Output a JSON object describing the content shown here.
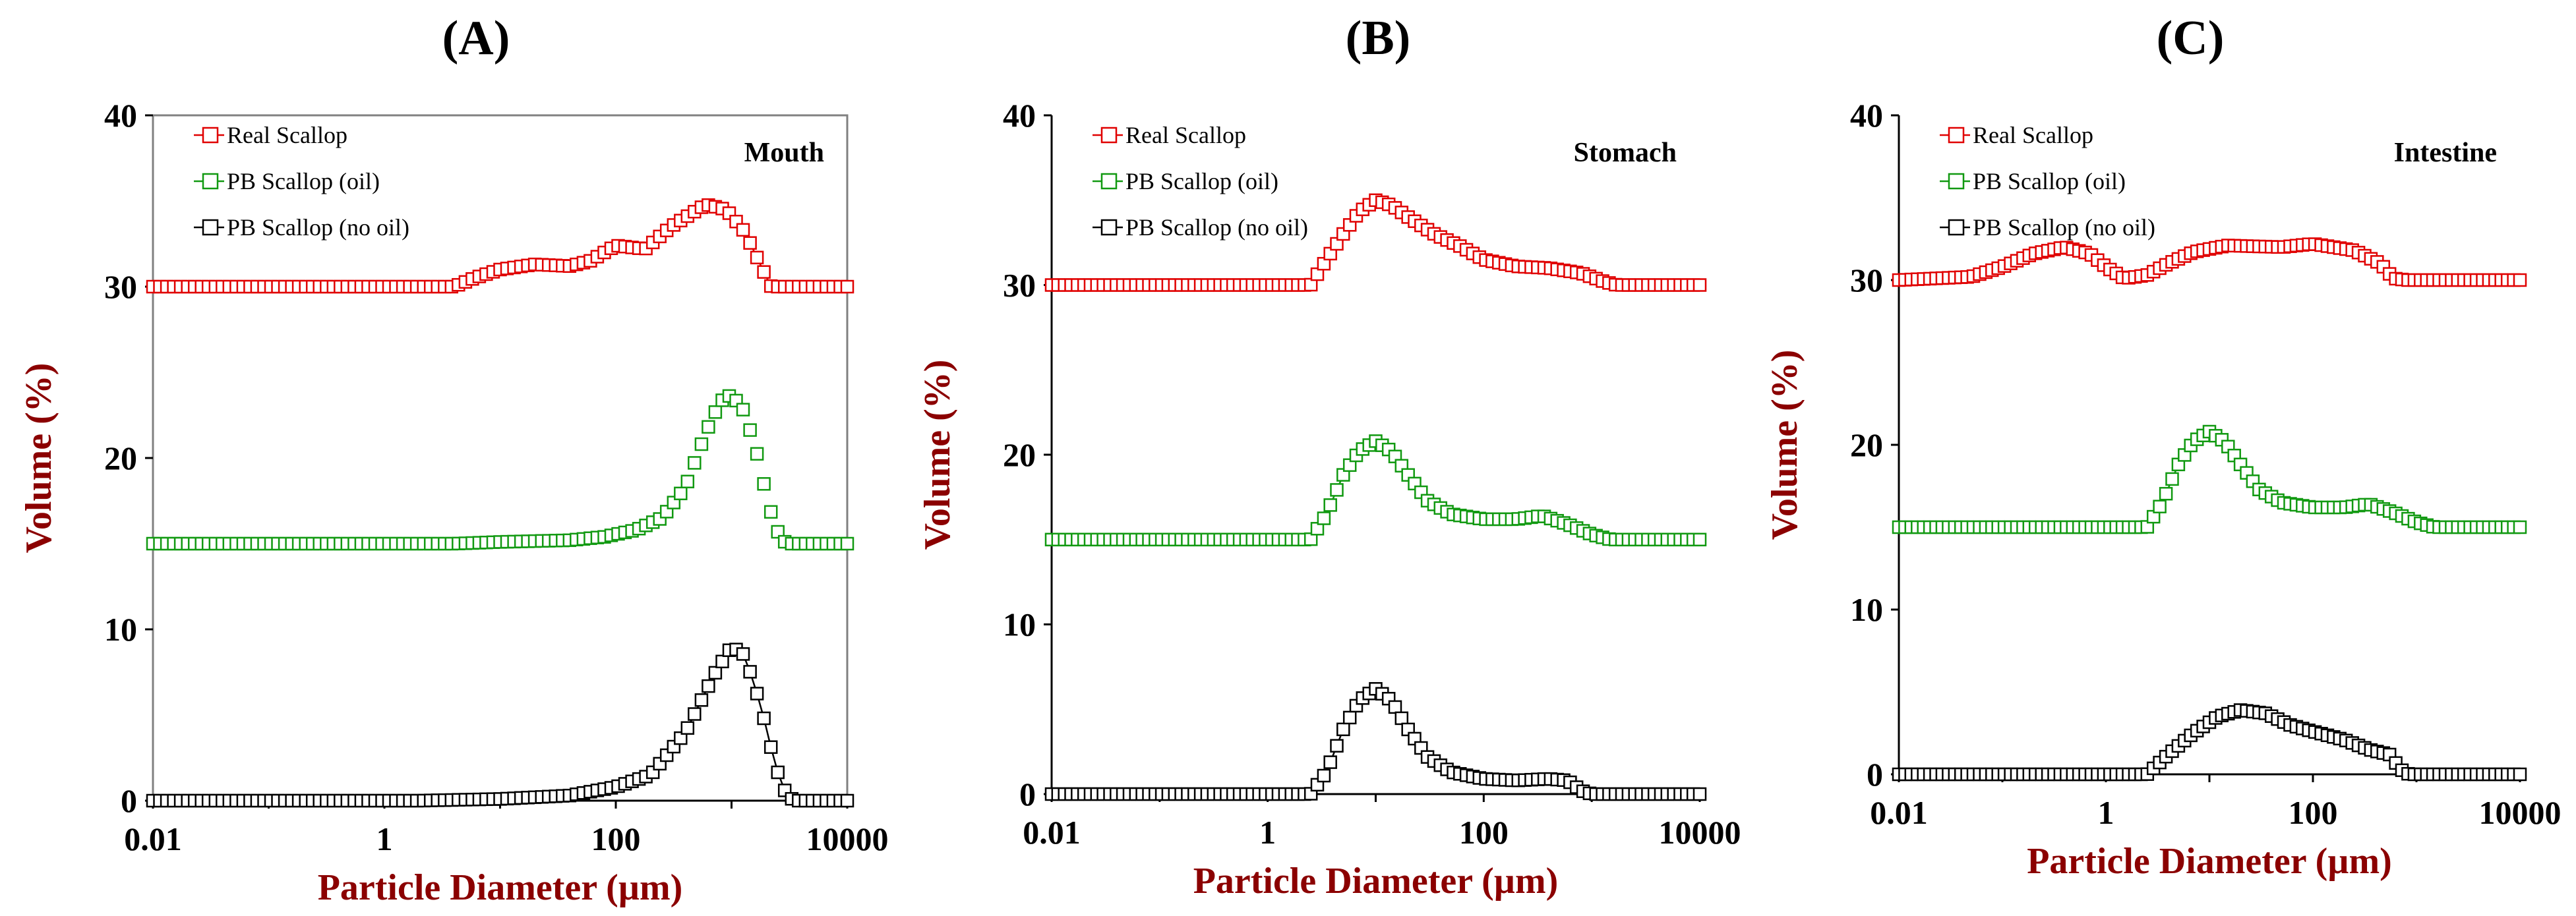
{
  "chart_data": [
    {
      "type": "line",
      "panel_label": "(A)",
      "stage": "Mouth",
      "xlabel": "Particle Diameter (µm)",
      "ylabel": "Volume (%)",
      "xscale": "log",
      "xlim": [
        0.01,
        10000
      ],
      "ylim": [
        0,
        40
      ],
      "xticks": [
        "0.01",
        "1",
        "100",
        "10000"
      ],
      "yticks": [
        "0",
        "10",
        "20",
        "30",
        "40"
      ],
      "legend_position": "top-left",
      "series": [
        {
          "name": "Real Scallop",
          "color": "#e00000",
          "marker": "open-square",
          "line": true,
          "points": [
            [
              0.01,
              30
            ],
            [
              1,
              30
            ],
            [
              4,
              30
            ],
            [
              6,
              30.5
            ],
            [
              10,
              31
            ],
            [
              20,
              31.3
            ],
            [
              40,
              31.2
            ],
            [
              60,
              31.5
            ],
            [
              100,
              32.4
            ],
            [
              180,
              32.2
            ],
            [
              300,
              33.5
            ],
            [
              600,
              34.8
            ],
            [
              900,
              34.5
            ],
            [
              1300,
              33.2
            ],
            [
              1800,
              31.2
            ],
            [
              2200,
              30
            ],
            [
              10000,
              30
            ]
          ]
        },
        {
          "name": "PB Scallop (oil)",
          "color": "#119911",
          "marker": "open-square",
          "line": false,
          "points": [
            [
              0.01,
              15
            ],
            [
              4,
              15
            ],
            [
              10,
              15.1
            ],
            [
              40,
              15.2
            ],
            [
              80,
              15.4
            ],
            [
              150,
              15.8
            ],
            [
              250,
              16.5
            ],
            [
              400,
              18.3
            ],
            [
              600,
              21.5
            ],
            [
              800,
              23.3
            ],
            [
              1000,
              23.7
            ],
            [
              1300,
              22.7
            ],
            [
              1700,
              20
            ],
            [
              2100,
              17.2
            ],
            [
              2600,
              15.4
            ],
            [
              3000,
              15
            ],
            [
              10000,
              15
            ]
          ]
        },
        {
          "name": "PB Scallop (no oil)",
          "color": "#000000",
          "marker": "open-square",
          "line": true,
          "points": [
            [
              0.01,
              0
            ],
            [
              2,
              0
            ],
            [
              10,
              0.1
            ],
            [
              40,
              0.3
            ],
            [
              100,
              0.8
            ],
            [
              200,
              1.5
            ],
            [
              400,
              4
            ],
            [
              700,
              7.3
            ],
            [
              1000,
              9
            ],
            [
              1300,
              8.5
            ],
            [
              1800,
              5.5
            ],
            [
              2400,
              2
            ],
            [
              3000,
              0.3
            ],
            [
              3500,
              0
            ],
            [
              10000,
              0
            ]
          ]
        }
      ]
    },
    {
      "type": "line",
      "panel_label": "(B)",
      "stage": "Stomach",
      "xlabel": "Particle Diameter (µm)",
      "ylabel": "Volume (%)",
      "xscale": "log",
      "xlim": [
        0.01,
        10000
      ],
      "ylim": [
        0,
        40
      ],
      "xticks": [
        "0.01",
        "1",
        "100",
        "10000"
      ],
      "yticks": [
        "0",
        "10",
        "20",
        "30",
        "40"
      ],
      "legend_position": "top-left",
      "series": [
        {
          "name": "Real Scallop",
          "color": "#e00000",
          "marker": "open-square",
          "line": true,
          "points": [
            [
              0.01,
              30
            ],
            [
              2.5,
              30
            ],
            [
              3.5,
              31.5
            ],
            [
              5,
              33
            ],
            [
              7,
              34.3
            ],
            [
              10,
              35
            ],
            [
              14,
              34.7
            ],
            [
              20,
              34
            ],
            [
              35,
              33
            ],
            [
              60,
              32.3
            ],
            [
              100,
              31.5
            ],
            [
              200,
              31.1
            ],
            [
              400,
              31
            ],
            [
              800,
              30.7
            ],
            [
              1300,
              30.2
            ],
            [
              1700,
              30
            ],
            [
              10000,
              30
            ]
          ]
        },
        {
          "name": "PB Scallop (oil)",
          "color": "#119911",
          "marker": "open-square",
          "line": true,
          "points": [
            [
              0.01,
              15
            ],
            [
              2.5,
              15
            ],
            [
              3.5,
              16.5
            ],
            [
              5,
              18.8
            ],
            [
              7,
              20.2
            ],
            [
              10,
              20.8
            ],
            [
              14,
              20.2
            ],
            [
              20,
              18.8
            ],
            [
              30,
              17.3
            ],
            [
              50,
              16.5
            ],
            [
              100,
              16.2
            ],
            [
              200,
              16.2
            ],
            [
              350,
              16.4
            ],
            [
              600,
              15.9
            ],
            [
              1000,
              15.3
            ],
            [
              1500,
              15
            ],
            [
              10000,
              15
            ]
          ]
        },
        {
          "name": "PB Scallop (no oil)",
          "color": "#000000",
          "marker": "open-square",
          "line": true,
          "points": [
            [
              0.01,
              0
            ],
            [
              2.5,
              0
            ],
            [
              3.5,
              1.3
            ],
            [
              5,
              3.8
            ],
            [
              7,
              5.5
            ],
            [
              10,
              6.2
            ],
            [
              14,
              5.5
            ],
            [
              20,
              3.8
            ],
            [
              30,
              2.2
            ],
            [
              50,
              1.3
            ],
            [
              100,
              0.9
            ],
            [
              200,
              0.8
            ],
            [
              400,
              0.9
            ],
            [
              600,
              0.8
            ],
            [
              800,
              0.2
            ],
            [
              1000,
              0
            ],
            [
              10000,
              0
            ]
          ]
        }
      ]
    },
    {
      "type": "line",
      "panel_label": "(C)",
      "stage": "Intestine",
      "xlabel": "Particle Diameter (µm)",
      "ylabel": "Volume (%)",
      "xscale": "log",
      "xlim": [
        0.01,
        10000
      ],
      "ylim": [
        0,
        40
      ],
      "xticks": [
        "0.01",
        "1",
        "100",
        "10000"
      ],
      "yticks": [
        "0",
        "10",
        "20",
        "30",
        "40"
      ],
      "legend_position": "top-left",
      "series": [
        {
          "name": "Real Scallop",
          "color": "#e00000",
          "marker": "open-square",
          "line": true,
          "points": [
            [
              0.01,
              30
            ],
            [
              0.05,
              30.2
            ],
            [
              0.1,
              30.8
            ],
            [
              0.2,
              31.6
            ],
            [
              0.4,
              32
            ],
            [
              0.7,
              31.6
            ],
            [
              1,
              30.8
            ],
            [
              1.5,
              30.1
            ],
            [
              2.5,
              30.3
            ],
            [
              4,
              31
            ],
            [
              7,
              31.7
            ],
            [
              15,
              32.1
            ],
            [
              50,
              32
            ],
            [
              100,
              32.2
            ],
            [
              250,
              31.8
            ],
            [
              450,
              31
            ],
            [
              600,
              30.1
            ],
            [
              800,
              30
            ],
            [
              10000,
              30
            ]
          ]
        },
        {
          "name": "PB Scallop (oil)",
          "color": "#119911",
          "marker": "open-square",
          "line": true,
          "points": [
            [
              0.01,
              15
            ],
            [
              2.5,
              15
            ],
            [
              3.5,
              16.5
            ],
            [
              5,
              18.8
            ],
            [
              7,
              20.2
            ],
            [
              10,
              20.8
            ],
            [
              14,
              20.2
            ],
            [
              20,
              18.8
            ],
            [
              30,
              17.3
            ],
            [
              50,
              16.5
            ],
            [
              100,
              16.2
            ],
            [
              200,
              16.2
            ],
            [
              350,
              16.4
            ],
            [
              600,
              15.9
            ],
            [
              1000,
              15.3
            ],
            [
              1500,
              15
            ],
            [
              10000,
              15
            ]
          ]
        },
        {
          "name": "PB Scallop (no oil)",
          "color": "#000000",
          "marker": "open-square",
          "line": true,
          "points": [
            [
              0.01,
              0
            ],
            [
              2.5,
              0
            ],
            [
              4,
              1.2
            ],
            [
              7,
              2.5
            ],
            [
              12,
              3.5
            ],
            [
              20,
              3.9
            ],
            [
              35,
              3.7
            ],
            [
              60,
              3
            ],
            [
              100,
              2.6
            ],
            [
              200,
              2.1
            ],
            [
              350,
              1.5
            ],
            [
              550,
              1.2
            ],
            [
              700,
              0.3
            ],
            [
              850,
              0
            ],
            [
              10000,
              0
            ]
          ]
        }
      ]
    }
  ]
}
